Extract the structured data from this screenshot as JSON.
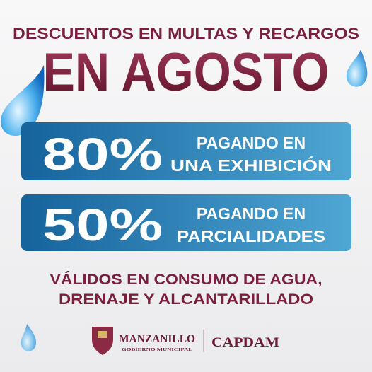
{
  "header": {
    "title": "DESCUENTOS EN MULTAS Y RECARGOS",
    "headline": "EN AGOSTO"
  },
  "offers": [
    {
      "percent": "80%",
      "line1": "PAGANDO EN",
      "line2": "UNA EXHIBICIÓN"
    },
    {
      "percent": "50%",
      "line1": "PAGANDO EN",
      "line2": "PARCIALIDADES"
    }
  ],
  "footer": {
    "line1": "VÁLIDOS EN CONSUMO DE AGUA,",
    "line2": "DRENAJE Y ALCANTARILLADO"
  },
  "logos": {
    "municipality": "MANZANILLO",
    "municipality_sub": "GOBIERNO MUNICIPAL",
    "agency": "CAPDAM"
  }
}
